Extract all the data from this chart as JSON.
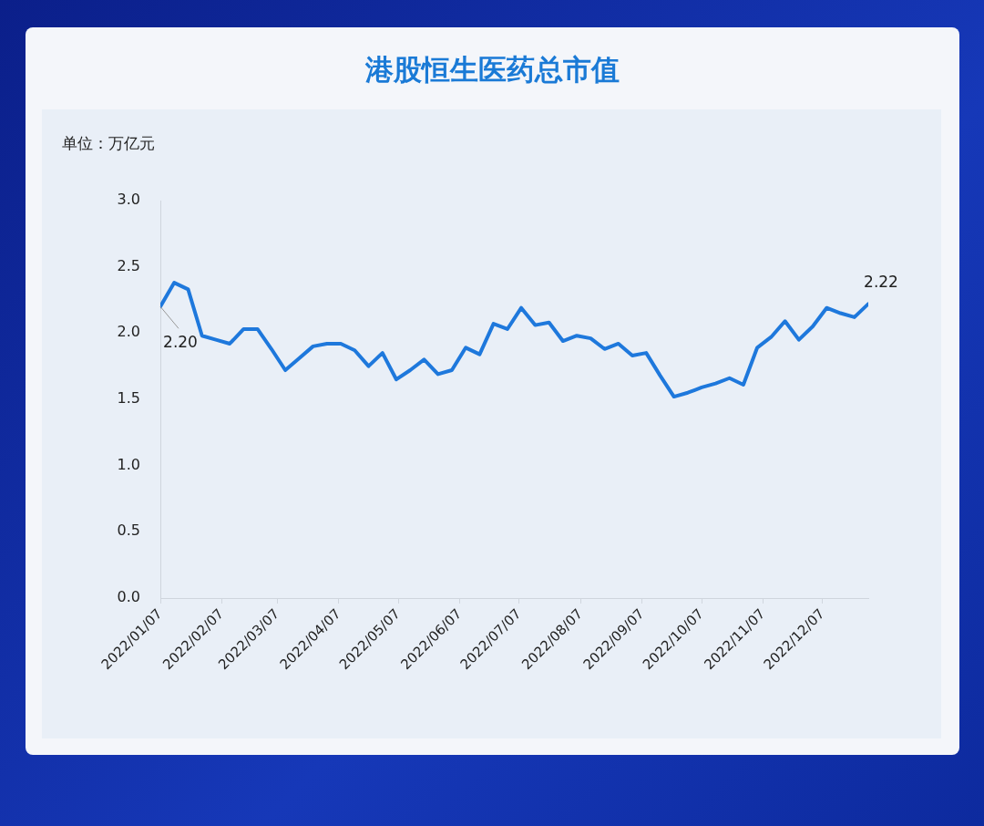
{
  "chart_data": {
    "type": "line",
    "title": "港股恒生医药总市值",
    "ylabel": "单位：万亿元",
    "x": [
      "2022-01-07",
      "2022-01-14",
      "2022-01-21",
      "2022-01-28",
      "2022-02-04",
      "2022-02-11",
      "2022-02-18",
      "2022-02-25",
      "2022-03-04",
      "2022-03-11",
      "2022-03-18",
      "2022-03-25",
      "2022-04-01",
      "2022-04-08",
      "2022-04-15",
      "2022-04-22",
      "2022-04-29",
      "2022-05-06",
      "2022-05-13",
      "2022-05-20",
      "2022-05-27",
      "2022-06-03",
      "2022-06-10",
      "2022-06-17",
      "2022-06-24",
      "2022-07-01",
      "2022-07-08",
      "2022-07-15",
      "2022-07-22",
      "2022-07-29",
      "2022-08-05",
      "2022-08-12",
      "2022-08-19",
      "2022-08-26",
      "2022-09-02",
      "2022-09-09",
      "2022-09-16",
      "2022-09-23",
      "2022-09-30",
      "2022-10-07",
      "2022-10-14",
      "2022-10-21",
      "2022-10-28",
      "2022-11-04",
      "2022-11-11",
      "2022-11-18",
      "2022-11-25",
      "2022-12-02",
      "2022-12-09",
      "2022-12-16",
      "2022-12-23",
      "2022-12-30"
    ],
    "series": [
      {
        "color": "#1e78dc",
        "values": [
          2.2,
          2.38,
          2.33,
          1.98,
          1.95,
          1.92,
          2.03,
          2.03,
          1.88,
          1.72,
          1.81,
          1.9,
          1.92,
          1.92,
          1.87,
          1.75,
          1.85,
          1.65,
          1.72,
          1.8,
          1.69,
          1.72,
          1.89,
          1.84,
          2.07,
          2.03,
          2.19,
          2.06,
          2.08,
          1.94,
          1.98,
          1.96,
          1.88,
          1.92,
          1.83,
          1.85,
          1.68,
          1.52,
          1.55,
          1.59,
          1.62,
          1.66,
          1.61,
          1.89,
          1.97,
          2.09,
          1.95,
          2.05,
          2.19,
          2.15,
          2.12,
          2.22
        ],
        "value_labels": [
          "2.20",
          null,
          null,
          null,
          null,
          null,
          null,
          null,
          null,
          null,
          null,
          null,
          null,
          null,
          null,
          null,
          null,
          null,
          null,
          null,
          null,
          null,
          null,
          null,
          null,
          null,
          null,
          null,
          null,
          null,
          null,
          null,
          null,
          null,
          null,
          null,
          null,
          null,
          null,
          null,
          null,
          null,
          null,
          null,
          null,
          null,
          null,
          null,
          null,
          null,
          null,
          "2.22"
        ]
      }
    ],
    "xlim": [
      "2022-01-07",
      "2022-12-30"
    ],
    "xticks": [
      {
        "value": "2022-01-07",
        "label": "2022/01/07"
      },
      {
        "value": "2022-02-07",
        "label": "2022/02/07"
      },
      {
        "value": "2022-03-07",
        "label": "2022/03/07"
      },
      {
        "value": "2022-04-07",
        "label": "2022/04/07"
      },
      {
        "value": "2022-05-07",
        "label": "2022/05/07"
      },
      {
        "value": "2022-06-07",
        "label": "2022/06/07"
      },
      {
        "value": "2022-07-07",
        "label": "2022/07/07"
      },
      {
        "value": "2022-08-07",
        "label": "2022/08/07"
      },
      {
        "value": "2022-09-07",
        "label": "2022/09/07"
      },
      {
        "value": "2022-10-07",
        "label": "2022/10/07"
      },
      {
        "value": "2022-11-07",
        "label": "2022/11/07"
      },
      {
        "value": "2022-12-07",
        "label": "2022/12/07"
      }
    ],
    "ylim": [
      0,
      3
    ],
    "yticks": [
      {
        "value": 0,
        "label": "0.0"
      },
      {
        "value": 0.5,
        "label": "0.5"
      },
      {
        "value": 1,
        "label": "1.0"
      },
      {
        "value": 1.5,
        "label": "1.5"
      },
      {
        "value": 2,
        "label": "2.0"
      },
      {
        "value": 2.5,
        "label": "2.5"
      },
      {
        "value": 3,
        "label": "3.0"
      }
    ],
    "grid": false,
    "legend": false,
    "marker": "none",
    "line_style": "solid"
  }
}
